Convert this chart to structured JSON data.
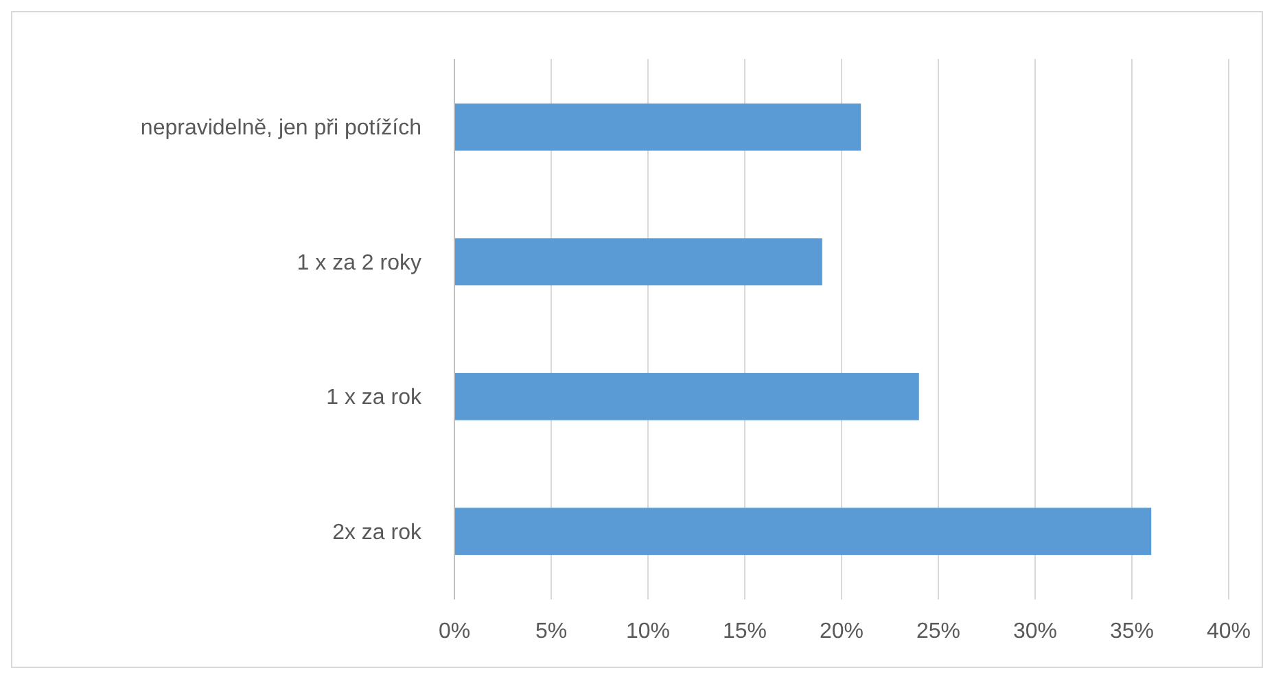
{
  "chart_data": {
    "type": "bar",
    "orientation": "horizontal",
    "categories": [
      "nepravidelně, jen při potížích",
      "1 x za 2 roky",
      "1 x za rok",
      "2x za rok"
    ],
    "values": [
      21,
      19,
      24,
      36
    ],
    "color": "#5b9bd5",
    "xlim": [
      0,
      40
    ],
    "xticks": [
      {
        "value": 0,
        "label": "0%"
      },
      {
        "value": 5,
        "label": "5%"
      },
      {
        "value": 10,
        "label": "10%"
      },
      {
        "value": 15,
        "label": "15%"
      },
      {
        "value": 20,
        "label": "20%"
      },
      {
        "value": 25,
        "label": "25%"
      },
      {
        "value": 30,
        "label": "30%"
      },
      {
        "value": 35,
        "label": "35%"
      },
      {
        "value": 40,
        "label": "40%"
      }
    ],
    "grid": "x"
  }
}
